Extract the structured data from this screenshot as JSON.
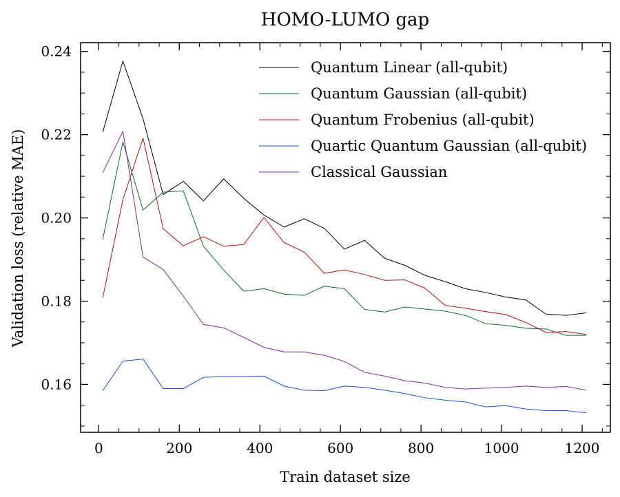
{
  "chart_data": {
    "type": "line",
    "title": "HOMO-LUMO gap",
    "xlabel": "Train dataset size",
    "ylabel": "Validation loss (relative MAE)",
    "xlim": [
      -45,
      1270
    ],
    "ylim": [
      0.1485,
      0.2421
    ],
    "xticks": [
      0,
      200,
      400,
      600,
      800,
      1000,
      1200
    ],
    "xtick_labels": [
      "0",
      "200",
      "400",
      "600",
      "800",
      "1000",
      "1200"
    ],
    "yticks": [
      0.16,
      0.18,
      0.2,
      0.22,
      0.24
    ],
    "ytick_labels": [
      "0.16",
      "0.18",
      "0.20",
      "0.22",
      "0.24"
    ],
    "legend_position": "top-right",
    "grid": false,
    "x": [
      10,
      60,
      110,
      160,
      210,
      260,
      310,
      360,
      410,
      460,
      510,
      560,
      610,
      660,
      710,
      760,
      810,
      860,
      910,
      960,
      1010,
      1060,
      1110,
      1160,
      1210
    ],
    "series": [
      {
        "name": "Quantum Linear (all-qubit)",
        "color": "#000000",
        "values": [
          0.2206,
          0.2377,
          0.2238,
          0.2056,
          0.2088,
          0.2041,
          0.2094,
          0.2047,
          0.2007,
          0.1978,
          0.1998,
          0.1975,
          0.1925,
          0.1946,
          0.1903,
          0.1886,
          0.1862,
          0.1847,
          0.183,
          0.1821,
          0.181,
          0.1803,
          0.1769,
          0.1766,
          0.1772
        ]
      },
      {
        "name": "Quantum Gaussian (all-qubit)",
        "color": "#0c6b2e",
        "values": [
          0.1948,
          0.2183,
          0.2019,
          0.2062,
          0.2065,
          0.1932,
          0.1875,
          0.1824,
          0.183,
          0.1817,
          0.1814,
          0.1836,
          0.183,
          0.178,
          0.1774,
          0.1786,
          0.1781,
          0.1776,
          0.1766,
          0.1746,
          0.1742,
          0.1735,
          0.1733,
          0.1718,
          0.1718
        ]
      },
      {
        "name": "Quantum Frobenius (all-qubit)",
        "color": "#b0140f",
        "values": [
          0.1808,
          0.2044,
          0.2192,
          0.1974,
          0.1933,
          0.1955,
          0.1932,
          0.1936,
          0.2001,
          0.1941,
          0.1918,
          0.1867,
          0.1875,
          0.1864,
          0.185,
          0.1851,
          0.1831,
          0.179,
          0.1783,
          0.1775,
          0.1768,
          0.1749,
          0.1725,
          0.1727,
          0.172
        ]
      },
      {
        "name": "Quartic Quantum Gaussian (all-qubit)",
        "color": "#1a4ecf",
        "values": [
          0.1585,
          0.1656,
          0.1661,
          0.159,
          0.159,
          0.1617,
          0.1619,
          0.1619,
          0.162,
          0.1596,
          0.1586,
          0.1585,
          0.1596,
          0.1593,
          0.1586,
          0.1578,
          0.1568,
          0.1562,
          0.1558,
          0.1546,
          0.1549,
          0.1541,
          0.1537,
          0.1537,
          0.1532
        ]
      },
      {
        "name": "Classical Gaussian",
        "color": "#7b2a9e",
        "values": [
          0.2109,
          0.2208,
          0.1906,
          0.1876,
          0.1812,
          0.1744,
          0.1736,
          0.1713,
          0.1689,
          0.1678,
          0.1678,
          0.167,
          0.1655,
          0.1629,
          0.162,
          0.1609,
          0.1603,
          0.1593,
          0.1589,
          0.1591,
          0.1593,
          0.1596,
          0.1593,
          0.1595,
          0.1586
        ]
      }
    ]
  }
}
